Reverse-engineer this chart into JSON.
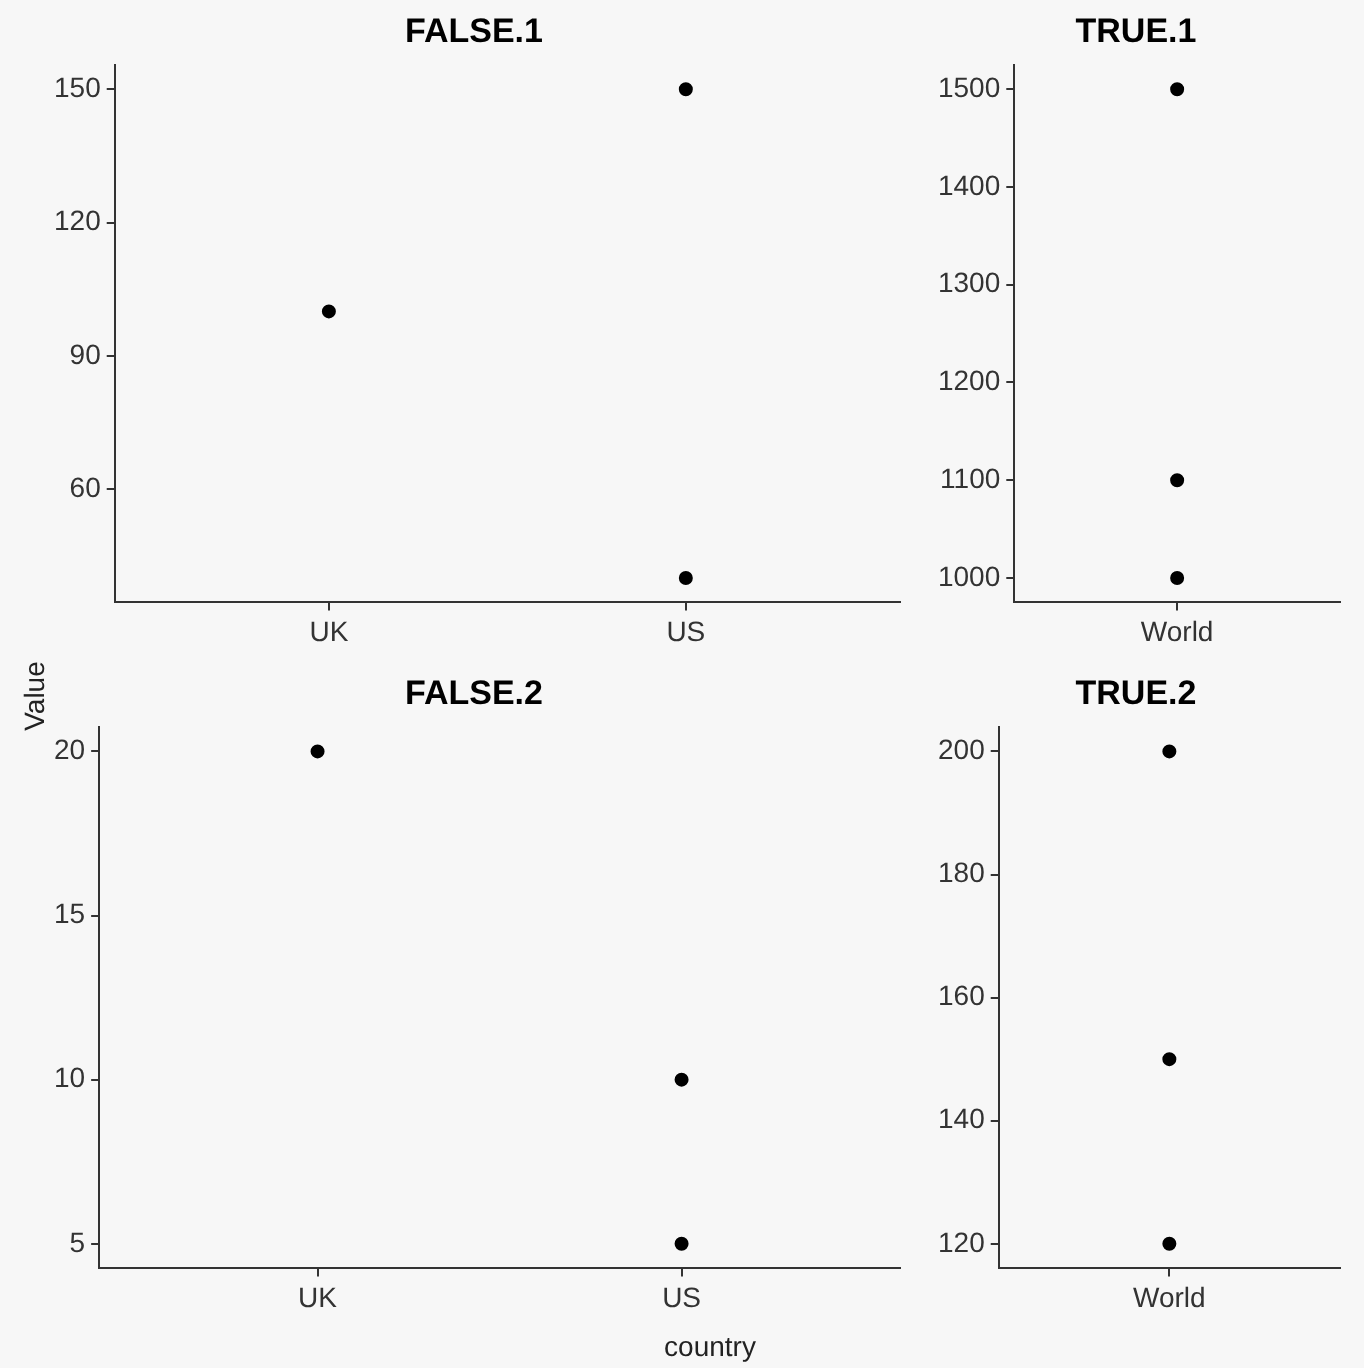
{
  "chart_data": [
    {
      "type": "scatter",
      "title": "FALSE.1",
      "ylabel": "Value",
      "categories": [
        "UK",
        "US"
      ],
      "ylim": [
        34.5,
        155.5
      ],
      "yticks": [
        60,
        90,
        120,
        150
      ],
      "grid": false,
      "legend": false,
      "marker": "circle",
      "series": [
        {
          "color": "#000000",
          "x": [
            "UK",
            "US",
            "US"
          ],
          "values": [
            100,
            150,
            40
          ]
        }
      ]
    },
    {
      "type": "scatter",
      "title": "TRUE.1",
      "categories": [
        "World"
      ],
      "ylim": [
        975,
        1525
      ],
      "yticks": [
        1000,
        1100,
        1200,
        1300,
        1400,
        1500
      ],
      "grid": false,
      "legend": false,
      "marker": "circle",
      "series": [
        {
          "color": "#000000",
          "x": [
            "World",
            "World",
            "World"
          ],
          "values": [
            1000,
            1100,
            1500
          ]
        }
      ]
    },
    {
      "type": "scatter",
      "title": "FALSE.2",
      "xlabel": "country",
      "categories": [
        "UK",
        "US"
      ],
      "ylim": [
        4.25,
        20.75
      ],
      "yticks": [
        5,
        10,
        15,
        20
      ],
      "grid": false,
      "legend": false,
      "marker": "circle",
      "series": [
        {
          "color": "#000000",
          "x": [
            "UK",
            "US",
            "US"
          ],
          "values": [
            20,
            10,
            5
          ]
        }
      ]
    },
    {
      "type": "scatter",
      "title": "TRUE.2",
      "categories": [
        "World"
      ],
      "ylim": [
        116,
        204
      ],
      "yticks": [
        120,
        140,
        160,
        180,
        200
      ],
      "grid": false,
      "legend": false,
      "marker": "circle",
      "series": [
        {
          "color": "#000000",
          "x": [
            "World",
            "World",
            "World"
          ],
          "values": [
            120,
            150,
            200
          ]
        }
      ]
    }
  ]
}
